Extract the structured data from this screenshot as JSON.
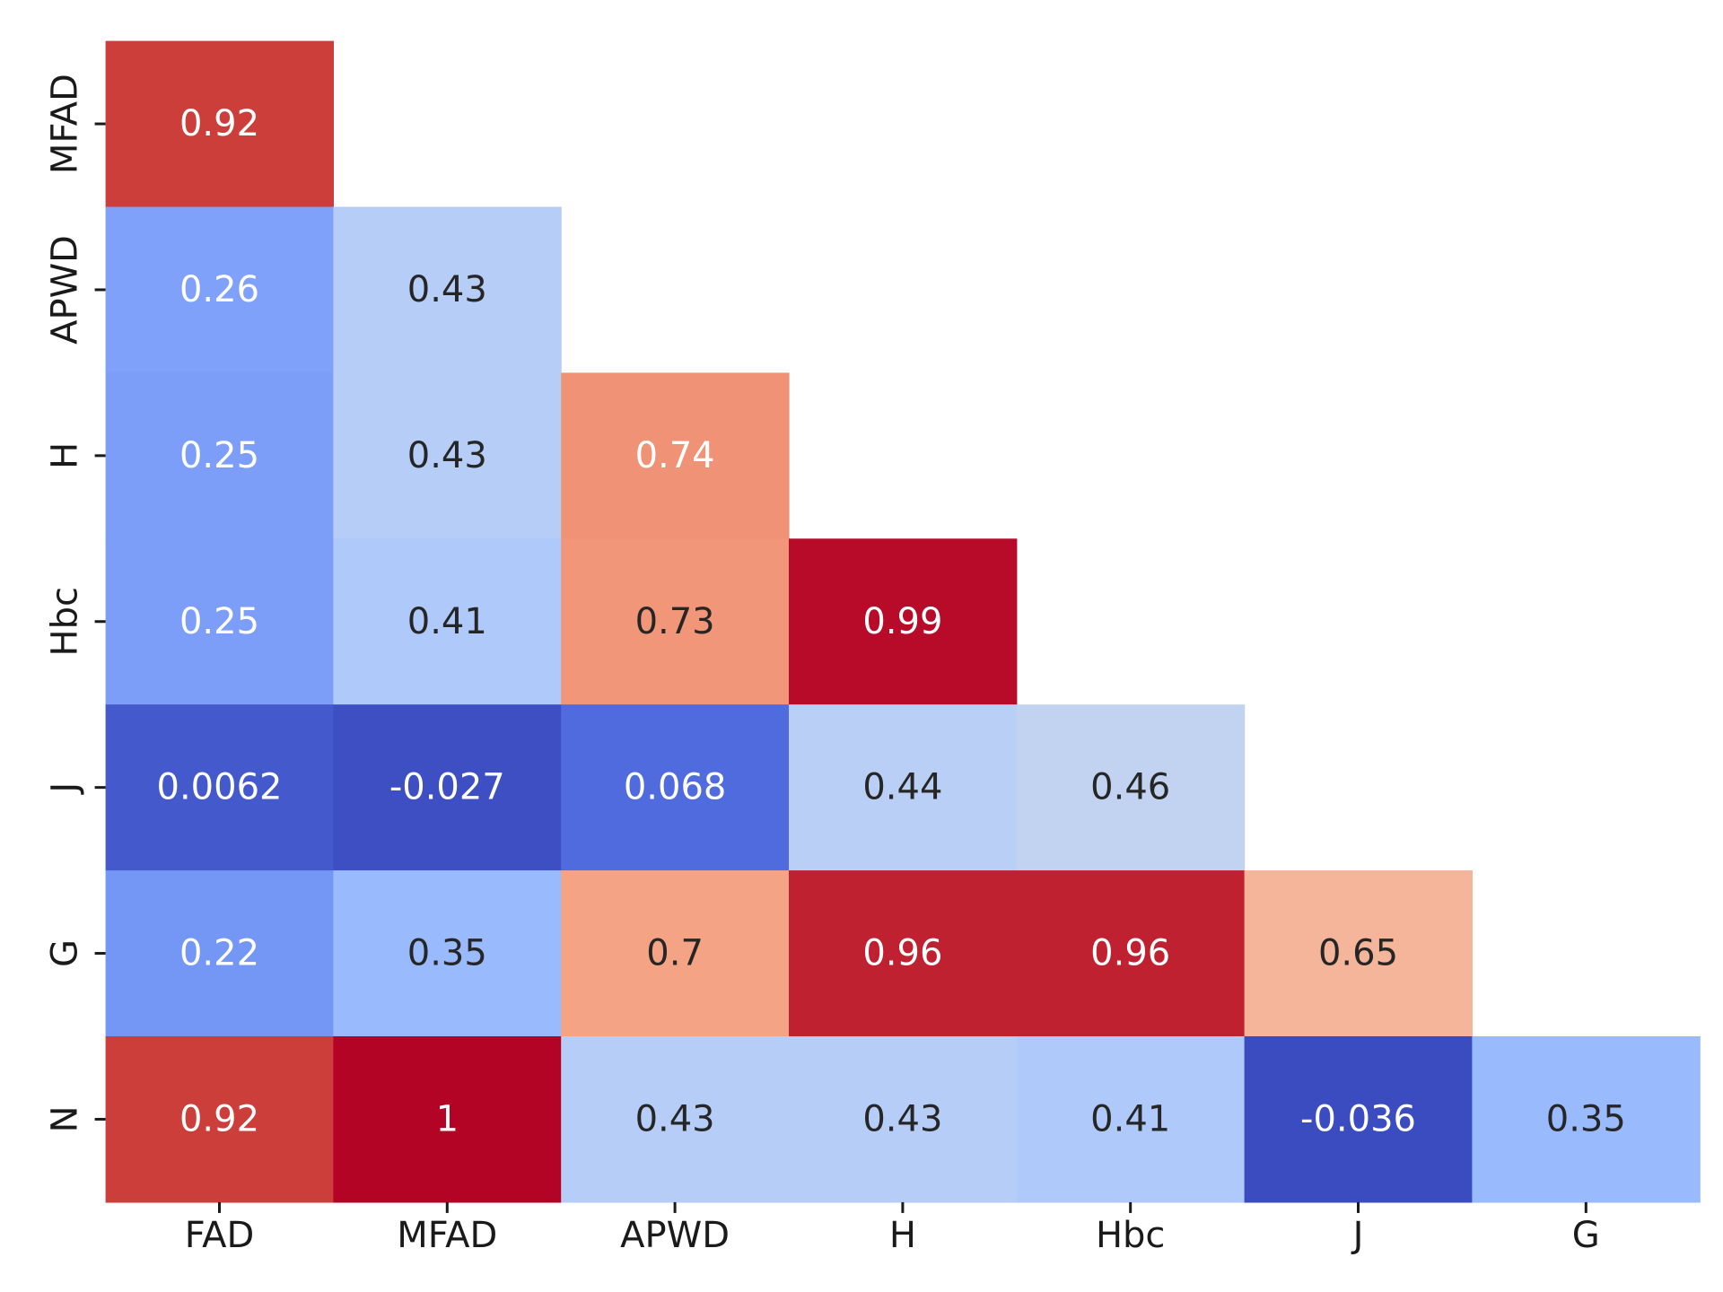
{
  "chart_data": {
    "type": "heatmap",
    "title": "",
    "xlabel": "",
    "ylabel": "",
    "colormap": "coolwarm",
    "vmin": -0.036,
    "vmax": 1,
    "mask": "upper-triangle-with-diagonal",
    "grid": false,
    "legend": "none",
    "x_categories": [
      "FAD",
      "MFAD",
      "APWD",
      "H",
      "Hbc",
      "J",
      "G"
    ],
    "y_categories": [
      "MFAD",
      "APWD",
      "H",
      "Hbc",
      "J",
      "G",
      "N"
    ],
    "rows": [
      {
        "y": "MFAD",
        "values": [
          0.92
        ]
      },
      {
        "y": "APWD",
        "values": [
          0.26,
          0.43
        ]
      },
      {
        "y": "H",
        "values": [
          0.25,
          0.43,
          0.74
        ]
      },
      {
        "y": "Hbc",
        "values": [
          0.25,
          0.41,
          0.73,
          0.99
        ]
      },
      {
        "y": "J",
        "values": [
          0.0062,
          -0.027,
          0.068,
          0.44,
          0.46
        ]
      },
      {
        "y": "G",
        "values": [
          0.22,
          0.35,
          0.7,
          0.96,
          0.96,
          0.65
        ]
      },
      {
        "y": "N",
        "values": [
          0.92,
          1,
          0.43,
          0.43,
          0.41,
          -0.036,
          0.35
        ]
      }
    ],
    "annotations": [
      [
        "0.92"
      ],
      [
        "0.26",
        "0.43"
      ],
      [
        "0.25",
        "0.43",
        "0.74"
      ],
      [
        "0.25",
        "0.41",
        "0.73",
        "0.99"
      ],
      [
        "0.0062",
        "-0.027",
        "0.068",
        "0.44",
        "0.46"
      ],
      [
        "0.22",
        "0.35",
        "0.7",
        "0.96",
        "0.96",
        "0.65"
      ],
      [
        "0.92",
        "1",
        "0.43",
        "0.43",
        "0.41",
        "-0.036",
        "0.35"
      ]
    ],
    "annotation_colors": {
      "dark": "#262626",
      "light": "#ffffff"
    }
  }
}
